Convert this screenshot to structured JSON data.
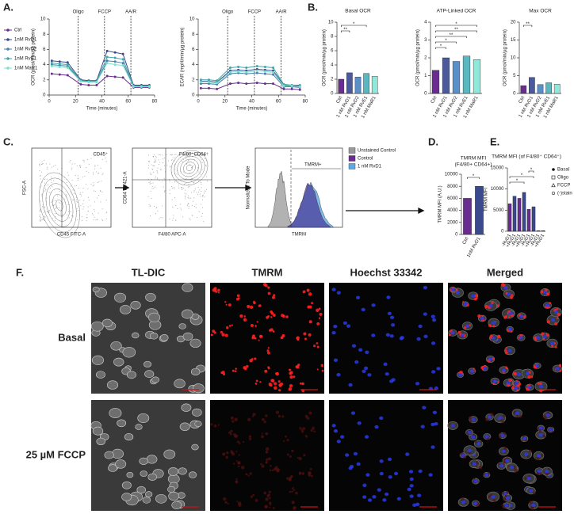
{
  "panel_labels": [
    "A.",
    "B.",
    "C.",
    "D.",
    "E.",
    "F."
  ],
  "chart_data": [
    {
      "type": "line",
      "xlabel": "Time (minutes)",
      "ylabel": "OCR (pmol/min/µg protein)",
      "x": [
        2,
        8,
        14,
        24,
        30,
        36,
        44,
        50,
        56,
        64,
        70,
        76
      ],
      "xlim": [
        0,
        80
      ],
      "xticks": [
        0,
        20,
        40,
        60,
        80
      ],
      "ylim": [
        0,
        10
      ],
      "yticks": [
        0,
        2,
        4,
        6,
        8,
        10
      ],
      "markers": [
        {
          "x": 22,
          "label": "Oligo"
        },
        {
          "x": 42,
          "label": "FCCP"
        },
        {
          "x": 62,
          "label": "AA/R"
        }
      ],
      "series": [
        {
          "name": "Ctrl",
          "color": "#6a2c91",
          "values": [
            2.8,
            2.7,
            2.6,
            1.4,
            1.3,
            1.3,
            2.5,
            2.4,
            2.3,
            1.0,
            1.0,
            1.0
          ]
        },
        {
          "name": "1nM RvD1",
          "color": "#3b4a8c",
          "values": [
            4.5,
            4.4,
            4.3,
            2.0,
            1.9,
            1.9,
            5.8,
            5.6,
            5.4,
            1.3,
            1.3,
            1.3
          ]
        },
        {
          "name": "1nM RvD2",
          "color": "#4a7fa8",
          "values": [
            4.0,
            3.9,
            3.8,
            1.8,
            1.7,
            1.7,
            4.5,
            4.4,
            4.2,
            1.2,
            1.2,
            1.2
          ]
        },
        {
          "name": "1nM RvE1",
          "color": "#3ea6a6",
          "values": [
            4.2,
            4.1,
            4.0,
            1.9,
            1.8,
            1.8,
            5.0,
            4.9,
            4.7,
            1.2,
            1.2,
            1.2
          ]
        },
        {
          "name": "1nM MaR1",
          "color": "#7de0d0",
          "values": [
            3.8,
            3.7,
            3.6,
            1.8,
            1.7,
            1.7,
            4.2,
            4.0,
            3.9,
            1.1,
            1.1,
            1.1
          ]
        }
      ]
    },
    {
      "type": "line",
      "xlabel": "Time (minutes)",
      "ylabel": "ECAR (mpH/min/µg protein)",
      "x": [
        2,
        8,
        14,
        24,
        30,
        36,
        44,
        50,
        56,
        64,
        70,
        76
      ],
      "xlim": [
        0,
        80
      ],
      "xticks": [
        0,
        20,
        40,
        60,
        80
      ],
      "ylim": [
        0,
        10
      ],
      "yticks": [
        0,
        2,
        4,
        6,
        8,
        10
      ],
      "markers": [
        {
          "x": 22,
          "label": "Oligo"
        },
        {
          "x": 42,
          "label": "FCCP"
        },
        {
          "x": 62,
          "label": "AA/R"
        }
      ],
      "series": [
        {
          "color": "#6a2c91",
          "values": [
            0.9,
            0.9,
            0.8,
            1.5,
            1.6,
            1.5,
            1.6,
            1.5,
            1.5,
            0.8,
            0.8,
            0.7
          ]
        },
        {
          "color": "#3b4a8c",
          "values": [
            1.8,
            1.8,
            1.7,
            3.2,
            3.3,
            3.2,
            3.4,
            3.3,
            3.2,
            1.3,
            1.2,
            1.2
          ]
        },
        {
          "color": "#4a7fa8",
          "values": [
            1.5,
            1.5,
            1.4,
            2.8,
            2.9,
            2.8,
            2.9,
            2.8,
            2.7,
            1.1,
            1.1,
            1.0
          ]
        },
        {
          "color": "#3ea6a6",
          "values": [
            2.0,
            2.0,
            1.9,
            3.6,
            3.7,
            3.6,
            3.8,
            3.7,
            3.6,
            1.4,
            1.3,
            1.3
          ]
        },
        {
          "color": "#7de0d0",
          "values": [
            1.7,
            1.7,
            1.6,
            3.0,
            3.1,
            3.0,
            3.2,
            3.1,
            3.0,
            1.2,
            1.2,
            1.1
          ]
        }
      ]
    },
    {
      "type": "bar",
      "title": "Basal OCR",
      "ylabel": "OCR (pmol/min/µg protein)",
      "categories": [
        "Ctrl",
        "1 nM RvD1",
        "1 nM RvD2",
        "1 nM RvE1",
        "1 nM MaR1"
      ],
      "values": [
        2.0,
        2.9,
        2.3,
        2.8,
        2.4
      ],
      "colors": [
        "#6a2c91",
        "#4a5a9c",
        "#5a8fc8",
        "#57b8c0",
        "#8fe8d8"
      ],
      "ylim": [
        0,
        10
      ],
      "yticks": [
        0,
        2,
        4,
        6,
        8,
        10
      ],
      "annotations": [
        {
          "between": [
            "Ctrl",
            "1 nM RvD1"
          ],
          "label": "**"
        },
        {
          "between": [
            "Ctrl",
            "1 nM RvE1"
          ],
          "label": "*"
        }
      ]
    },
    {
      "type": "bar",
      "title": "ATP-Linked OCR",
      "ylabel": "OCR (pmol/min/µg protein)",
      "categories": [
        "Ctrl",
        "1 nM RvD1",
        "1 nM RvD2",
        "1 nM RvE1",
        "1 nM MaR1"
      ],
      "values": [
        1.3,
        2.0,
        1.8,
        2.1,
        1.9
      ],
      "colors": [
        "#6a2c91",
        "#4a5a9c",
        "#5a8fc8",
        "#57b8c0",
        "#8fe8d8"
      ],
      "ylim": [
        0,
        4
      ],
      "yticks": [
        0,
        1,
        2,
        3,
        4
      ],
      "annotations": [
        {
          "between": [
            "Ctrl",
            "1 nM RvD1"
          ],
          "label": "*"
        },
        {
          "between": [
            "Ctrl",
            "1 nM RvD2"
          ],
          "label": "*"
        },
        {
          "between": [
            "Ctrl",
            "1 nM RvE1"
          ],
          "label": "**"
        },
        {
          "between": [
            "Ctrl",
            "1 nM MaR1"
          ],
          "label": "**"
        },
        {
          "between": [
            "Ctrl",
            "1 nM MaR1"
          ],
          "label": "*"
        }
      ]
    },
    {
      "type": "bar",
      "title": "Max OCR",
      "ylabel": "OCR (pmol/min/µg protein)",
      "categories": [
        "Ctrl",
        "1 nM RvD1",
        "1 nM RvD2",
        "1 nM RvE1",
        "1 nM MaR1"
      ],
      "values": [
        2.2,
        4.5,
        2.5,
        3.0,
        2.6
      ],
      "colors": [
        "#6a2c91",
        "#4a5a9c",
        "#5a8fc8",
        "#57b8c0",
        "#8fe8d8"
      ],
      "ylim": [
        0,
        20
      ],
      "yticks": [
        0,
        5,
        10,
        15,
        20
      ],
      "annotations": [
        {
          "between": [
            "Ctrl",
            "1 nM RvD1"
          ],
          "label": "**"
        }
      ]
    },
    {
      "type": "bar",
      "title": "TMRM MFI",
      "subtitle": "(F4/80+ CD64+)",
      "ylabel": "TMRM MFI (A.U.)",
      "categories": [
        "Ctrl",
        "1nM RvD1"
      ],
      "values": [
        6000,
        8000
      ],
      "colors": [
        "#6a2c91",
        "#3b4a8c"
      ],
      "ylim": [
        0,
        10000
      ],
      "yticks": [
        0,
        2000,
        4000,
        6000,
        8000,
        10000
      ],
      "annotations": [
        {
          "between": [
            "Ctrl",
            "1nM RvD1"
          ],
          "label": "*"
        }
      ]
    },
    {
      "type": "bar",
      "title": "TMRM MFI (of F4/80⁺ CD64⁺)",
      "ylabel": "TMRM MFI",
      "categories": [
        "-RvD1",
        "+RvD1",
        "-RvD1",
        "+RvD1",
        "-RvD1",
        "+RvD1",
        "-RvD1",
        "+RvD1"
      ],
      "values": [
        6500,
        8300,
        7800,
        9200,
        5200,
        5800,
        150,
        150
      ],
      "colors": [
        "#6a2c91",
        "#3b4a8c",
        "#6a2c91",
        "#3b4a8c",
        "#6a2c91",
        "#3b4a8c",
        "#6a2c91",
        "#3b4a8c"
      ],
      "ylim": [
        0,
        15000
      ],
      "yticks": [
        0,
        5000,
        10000,
        15000
      ],
      "annotations": [
        {
          "label": "*"
        },
        {
          "label": "*"
        },
        {
          "label": "*"
        }
      ],
      "legend": [
        {
          "name": "Basal",
          "marker": "dot"
        },
        {
          "name": "Oligo",
          "marker": "square"
        },
        {
          "name": "FCCP",
          "marker": "triangle"
        },
        {
          "name": "(-)stain",
          "marker": "circle"
        }
      ]
    }
  ],
  "flow": {
    "plots": [
      {
        "gate": "CD45⁺",
        "xlabel": "CD45 FITC-A",
        "ylabel": "FSC-A"
      },
      {
        "gate": "F4/80⁺CD64⁺",
        "xlabel": "F4/80 APC-A",
        "ylabel": "CD64 BV421-A"
      },
      {
        "gate": "TMRM+",
        "xlabel": "TMRM",
        "ylabel": "Normalized To Mode"
      }
    ],
    "legend": [
      {
        "name": "Unstained Control",
        "color": "#9a9a9a"
      },
      {
        "name": "Control",
        "color": "#6a2c91"
      },
      {
        "name": "1 nM RvD1",
        "color": "#5fa8e0"
      }
    ]
  },
  "microscopy": {
    "columns": [
      {
        "title": "TL-DIC",
        "color": "#9a9a9a"
      },
      {
        "title": "TMRM",
        "color": "#e01010"
      },
      {
        "title": "Hoechst 33342",
        "color": "#1a1ae0"
      },
      {
        "title": "Merged",
        "color": "#111111"
      }
    ],
    "rows": [
      "Basal",
      "25 µM FCCP"
    ]
  }
}
